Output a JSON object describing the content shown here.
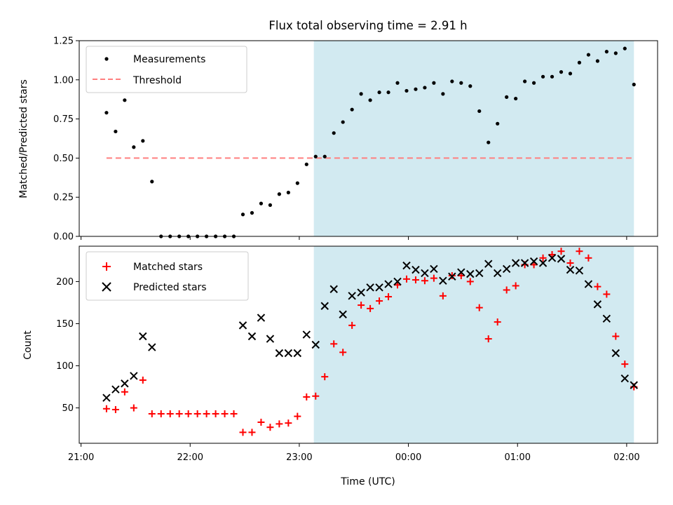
{
  "chart_data": [
    {
      "type": "scatter",
      "title": "Flux total observing time = 2.91 h",
      "xlabel": "",
      "ylabel": "Matched/Predicted stars",
      "ylim": [
        0,
        1.25
      ],
      "yticks": [
        0,
        0.25,
        0.5,
        0.75,
        1.0,
        1.25
      ],
      "ytick_labels": [
        "0.00",
        "0.25",
        "0.50",
        "0.75",
        "1.00",
        "1.25"
      ],
      "xlim": [
        "20:59",
        "02:17"
      ],
      "shaded_interval": [
        "23:08",
        "02:04"
      ],
      "shade_color": "#add8e6",
      "legend_position": "upper left",
      "series": [
        {
          "name": "Measurements",
          "marker": "dot",
          "color": "#000000",
          "x": [
            "21:14",
            "21:19",
            "21:24",
            "21:29",
            "21:34",
            "21:39",
            "21:44",
            "21:49",
            "21:54",
            "21:59",
            "22:04",
            "22:09",
            "22:14",
            "22:19",
            "22:24",
            "22:29",
            "22:34",
            "22:39",
            "22:44",
            "22:49",
            "22:54",
            "22:59",
            "23:04",
            "23:09",
            "23:14",
            "23:19",
            "23:24",
            "23:29",
            "23:34",
            "23:39",
            "23:44",
            "23:49",
            "23:54",
            "23:59",
            "00:04",
            "00:09",
            "00:14",
            "00:19",
            "00:24",
            "00:29",
            "00:34",
            "00:39",
            "00:44",
            "00:49",
            "00:54",
            "00:59",
            "01:04",
            "01:09",
            "01:14",
            "01:19",
            "01:24",
            "01:29",
            "01:34",
            "01:39",
            "01:44",
            "01:49",
            "01:54",
            "01:59",
            "02:04"
          ],
          "y": [
            0.79,
            0.67,
            0.87,
            0.57,
            0.61,
            0.35,
            0.0,
            0.0,
            0.0,
            0.0,
            0.0,
            0.0,
            0.0,
            0.0,
            0.0,
            0.14,
            0.15,
            0.21,
            0.2,
            0.27,
            0.28,
            0.34,
            0.46,
            0.51,
            0.51,
            0.66,
            0.73,
            0.81,
            0.91,
            0.87,
            0.92,
            0.92,
            0.98,
            0.93,
            0.94,
            0.95,
            0.98,
            0.91,
            0.99,
            0.98,
            0.96,
            0.8,
            0.6,
            0.72,
            0.89,
            0.88,
            0.99,
            0.98,
            1.02,
            1.02,
            1.05,
            1.04,
            1.11,
            1.16,
            1.12,
            1.18,
            1.17,
            1.2,
            0.97
          ]
        },
        {
          "name": "Threshold",
          "style": "dashed-line",
          "color": "#ff7f7f",
          "x": [
            "21:14",
            "02:04"
          ],
          "y": [
            0.5,
            0.5
          ]
        }
      ]
    },
    {
      "type": "scatter",
      "title": "",
      "xlabel": "Time (UTC)",
      "ylabel": "Count",
      "ylim": [
        8,
        242
      ],
      "yticks": [
        50,
        100,
        150,
        200
      ],
      "ytick_labels": [
        "50",
        "100",
        "150",
        "200"
      ],
      "xticks": [
        "21:00",
        "22:00",
        "23:00",
        "00:00",
        "01:00",
        "02:00"
      ],
      "xtick_labels": [
        "21:00",
        "22:00",
        "23:00",
        "00:00",
        "01:00",
        "02:00"
      ],
      "xlim": [
        "20:59",
        "02:17"
      ],
      "shaded_interval": [
        "23:08",
        "02:04"
      ],
      "shade_color": "#add8e6",
      "legend_position": "upper left",
      "series": [
        {
          "name": "Matched stars",
          "marker": "plus",
          "color": "#ff0000",
          "x": [
            "21:14",
            "21:19",
            "21:24",
            "21:29",
            "21:34",
            "21:39",
            "21:44",
            "21:49",
            "21:54",
            "21:59",
            "22:04",
            "22:09",
            "22:14",
            "22:19",
            "22:24",
            "22:29",
            "22:34",
            "22:39",
            "22:44",
            "22:49",
            "22:54",
            "22:59",
            "23:04",
            "23:09",
            "23:14",
            "23:19",
            "23:24",
            "23:29",
            "23:34",
            "23:39",
            "23:44",
            "23:49",
            "23:54",
            "23:59",
            "00:04",
            "00:09",
            "00:14",
            "00:19",
            "00:24",
            "00:29",
            "00:34",
            "00:39",
            "00:44",
            "00:49",
            "00:54",
            "00:59",
            "01:04",
            "01:09",
            "01:14",
            "01:19",
            "01:24",
            "01:29",
            "01:34",
            "01:39",
            "01:44",
            "01:49",
            "01:54",
            "01:59",
            "02:04"
          ],
          "y": [
            49,
            48,
            69,
            50,
            83,
            43,
            43,
            43,
            43,
            43,
            43,
            43,
            43,
            43,
            43,
            21,
            21,
            33,
            27,
            31,
            32,
            40,
            63,
            64,
            87,
            126,
            116,
            148,
            172,
            168,
            177,
            182,
            196,
            203,
            202,
            201,
            204,
            183,
            207,
            207,
            200,
            169,
            132,
            152,
            190,
            195,
            220,
            220,
            228,
            232,
            236,
            222,
            236,
            228,
            194,
            185,
            135,
            102,
            75
          ]
        },
        {
          "name": "Predicted stars",
          "marker": "x",
          "color": "#000000",
          "x": [
            "21:14",
            "21:19",
            "21:24",
            "21:29",
            "21:34",
            "21:39",
            "22:29",
            "22:34",
            "22:39",
            "22:44",
            "22:49",
            "22:54",
            "22:59",
            "23:04",
            "23:09",
            "23:14",
            "23:19",
            "23:24",
            "23:29",
            "23:34",
            "23:39",
            "23:44",
            "23:49",
            "23:54",
            "23:59",
            "00:04",
            "00:09",
            "00:14",
            "00:19",
            "00:24",
            "00:29",
            "00:34",
            "00:39",
            "00:44",
            "00:49",
            "00:54",
            "00:59",
            "01:04",
            "01:09",
            "01:14",
            "01:19",
            "01:24",
            "01:29",
            "01:34",
            "01:39",
            "01:44",
            "01:49",
            "01:54",
            "01:59",
            "02:04"
          ],
          "y": [
            62,
            72,
            79,
            88,
            135,
            122,
            148,
            135,
            157,
            132,
            115,
            115,
            115,
            137,
            125,
            171,
            191,
            161,
            183,
            187,
            193,
            193,
            197,
            200,
            219,
            214,
            210,
            215,
            201,
            206,
            211,
            209,
            210,
            221,
            210,
            215,
            222,
            222,
            224,
            222,
            228,
            227,
            214,
            213,
            197,
            173,
            156,
            115,
            85,
            77
          ]
        }
      ]
    }
  ]
}
